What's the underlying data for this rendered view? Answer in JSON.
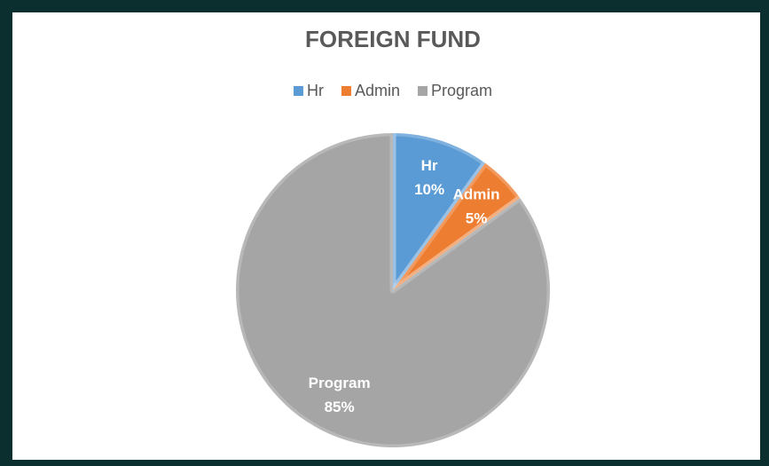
{
  "chart_data": {
    "type": "pie",
    "title": "FOREIGN FUND",
    "categories": [
      "Hr",
      "Admin",
      "Program"
    ],
    "values": [
      10,
      5,
      85
    ],
    "value_labels": [
      "10%",
      "5%",
      "85%"
    ],
    "colors": [
      "#5b9bd5",
      "#ed7d31",
      "#a5a5a5"
    ],
    "legend": "top"
  }
}
